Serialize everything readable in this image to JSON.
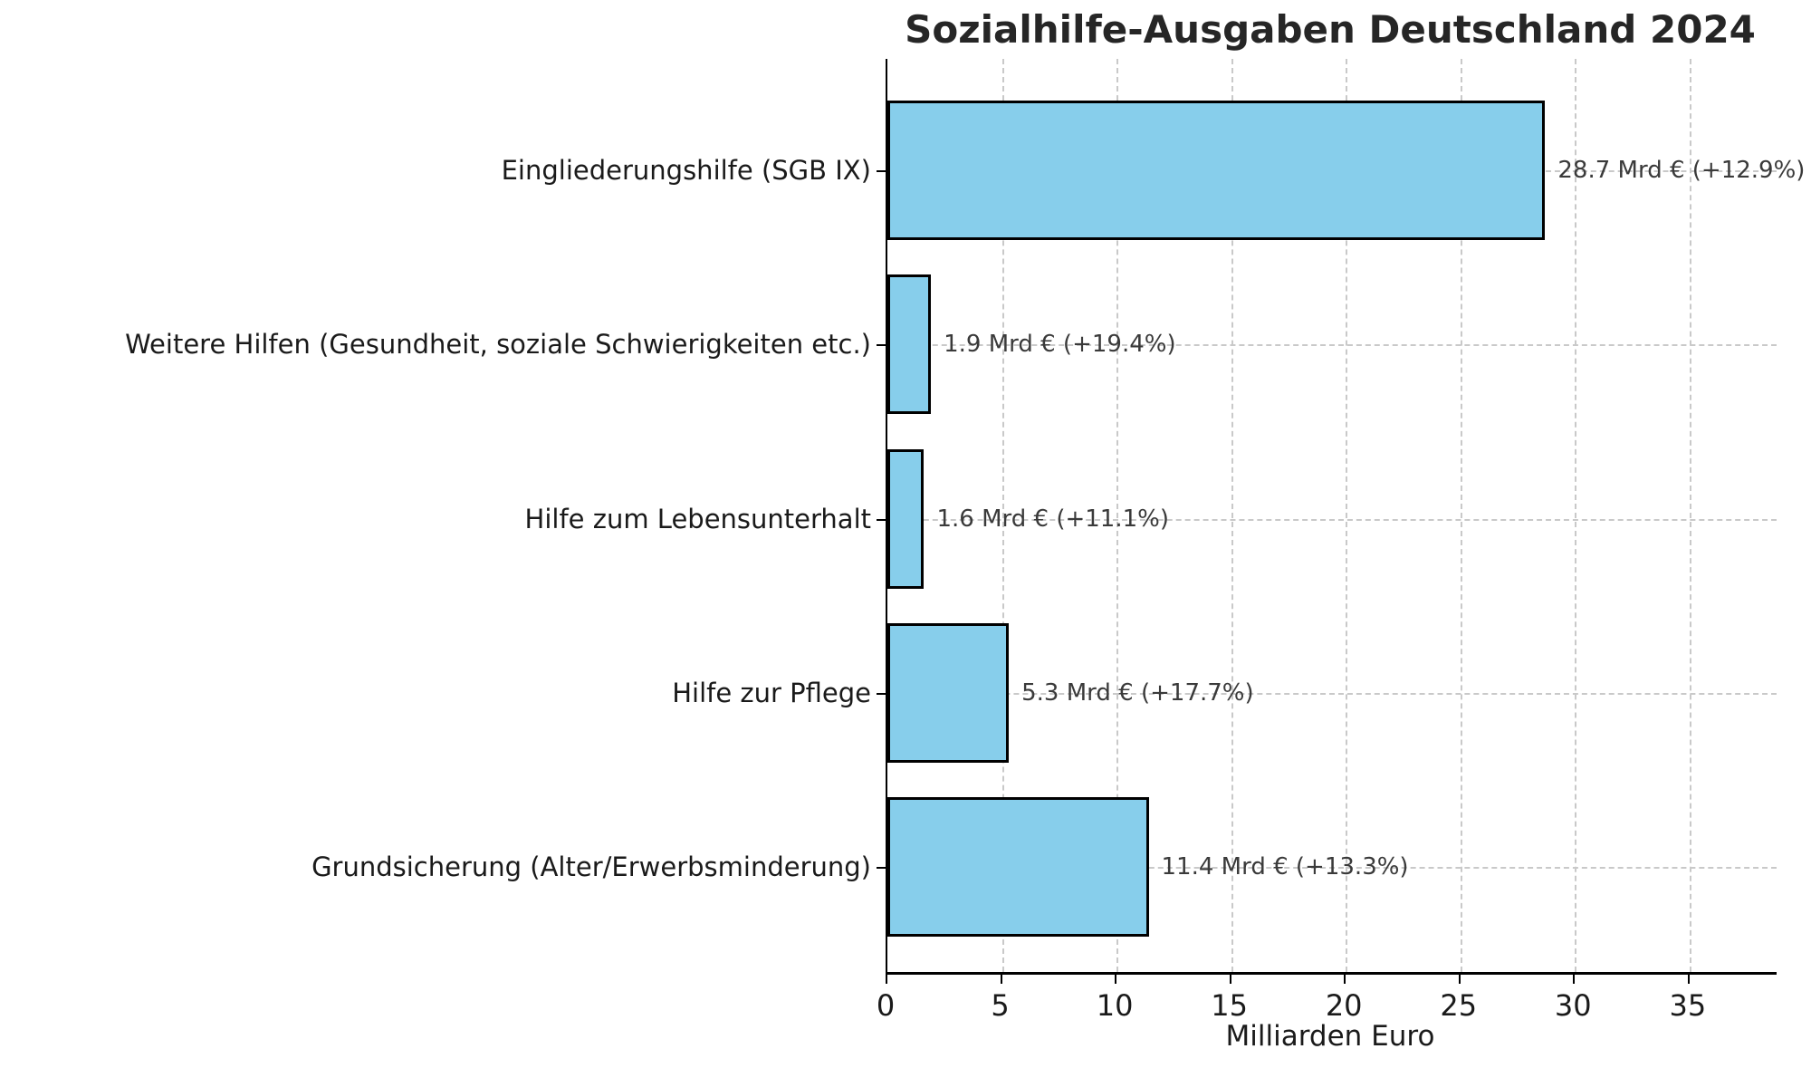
{
  "chart_data": {
    "type": "bar",
    "orientation": "horizontal",
    "title": "Sozialhilfe-Ausgaben Deutschland 2024",
    "xlabel": "Milliarden Euro",
    "ylabel": "",
    "categories": [
      "Eingliederungshilfe (SGB IX)",
      "Weitere Hilfen (Gesundheit, soziale Schwierigkeiten etc.)",
      "Hilfe zum Lebensunterhalt",
      "Hilfe zur Pflege",
      "Grundsicherung (Alter/Erwerbsminderung)"
    ],
    "values": [
      28.7,
      1.9,
      1.6,
      5.3,
      11.4
    ],
    "annotations": [
      "28.7 Mrd € (+12.9%)",
      "1.9 Mrd € (+19.4%)",
      "1.6 Mrd € (+11.1%)",
      "5.3 Mrd € (+17.7%)",
      "11.4 Mrd € (+13.3%)"
    ],
    "xlim": [
      0,
      38.8
    ],
    "xticks": [
      0,
      5,
      10,
      15,
      20,
      25,
      30,
      35
    ],
    "grid": true,
    "grid_style": "dashed",
    "legend": "none",
    "colors": {
      "bar_fill": "#87CEEB",
      "bar_edge": "#000000",
      "grid": "#c9c9c9",
      "annotation_text": "#3a3a3a",
      "axis_text": "#1a1a1a",
      "title_text": "#262626"
    }
  }
}
